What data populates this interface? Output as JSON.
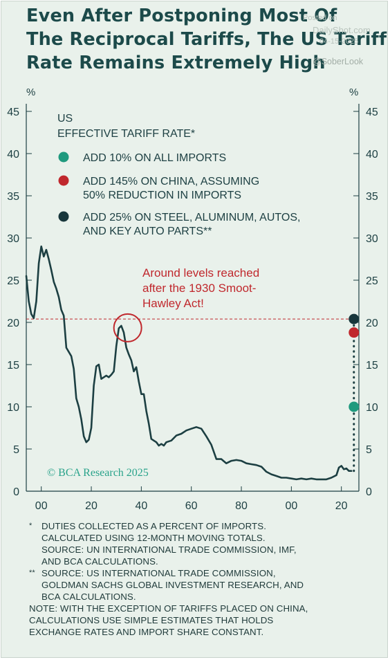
{
  "title_lines": [
    "Even After Postponing Most Of",
    "The Reciprocal Tariffs, The US Tariff",
    "Rate Remains Extremely High"
  ],
  "watermark": {
    "posted_on": "Posted on",
    "site": "DailyShot.com",
    "date": "04-15-2025",
    "handle": "@SoberLook"
  },
  "chart_data": {
    "type": "line",
    "y_unit_left": "%",
    "y_unit_right": "%",
    "ylim": [
      0,
      45
    ],
    "xlim": [
      1894,
      2027
    ],
    "y_ticks": [
      "0",
      "5",
      "10",
      "15",
      "20",
      "25",
      "30",
      "35",
      "40",
      "45"
    ],
    "x_ticks": [
      {
        "value": 1900,
        "label": "00"
      },
      {
        "value": 1920,
        "label": "20"
      },
      {
        "value": 1940,
        "label": "40"
      },
      {
        "value": 1960,
        "label": "60"
      },
      {
        "value": 1980,
        "label": "80"
      },
      {
        "value": 2000,
        "label": "00"
      },
      {
        "value": 2020,
        "label": "20"
      }
    ],
    "series": [
      {
        "name": "US EFFECTIVE TARIFF RATE",
        "color": "#1c3f42",
        "x": [
          1894,
          1895,
          1896,
          1897,
          1898,
          1899,
          1900,
          1901,
          1902,
          1903,
          1904,
          1905,
          1906,
          1907,
          1908,
          1909,
          1910,
          1911,
          1912,
          1913,
          1914,
          1915,
          1916,
          1917,
          1918,
          1919,
          1920,
          1921,
          1922,
          1923,
          1924,
          1925,
          1926,
          1927,
          1928,
          1929,
          1930,
          1931,
          1932,
          1933,
          1934,
          1935,
          1936,
          1937,
          1938,
          1939,
          1940,
          1941,
          1942,
          1943,
          1944,
          1945,
          1946,
          1947,
          1948,
          1949,
          1950,
          1952,
          1954,
          1956,
          1958,
          1960,
          1962,
          1964,
          1966,
          1968,
          1970,
          1972,
          1974,
          1976,
          1978,
          1980,
          1982,
          1984,
          1986,
          1988,
          1990,
          1992,
          1994,
          1996,
          1998,
          2000,
          2002,
          2004,
          2006,
          2008,
          2010,
          2012,
          2014,
          2016,
          2018,
          2019,
          2020,
          2021,
          2022,
          2023,
          2024
        ],
        "y": [
          25.5,
          22.5,
          21.0,
          20.5,
          22.5,
          27.0,
          29.0,
          27.8,
          28.6,
          27.5,
          26.2,
          24.8,
          24.0,
          23.0,
          21.5,
          20.8,
          17.0,
          16.5,
          16.0,
          14.5,
          11.0,
          10.0,
          8.5,
          6.5,
          5.8,
          6.1,
          7.5,
          12.5,
          14.8,
          15.0,
          13.3,
          13.5,
          13.7,
          13.5,
          13.8,
          14.2,
          17.2,
          19.3,
          19.6,
          18.8,
          17.0,
          16.2,
          15.5,
          14.2,
          14.7,
          13.0,
          11.5,
          11.5,
          9.5,
          8.0,
          6.2,
          6.0,
          5.8,
          5.4,
          5.6,
          5.4,
          5.8,
          6.0,
          6.6,
          6.8,
          7.2,
          7.4,
          7.6,
          7.4,
          6.5,
          5.5,
          3.8,
          3.8,
          3.3,
          3.6,
          3.7,
          3.6,
          3.3,
          3.2,
          3.1,
          2.9,
          2.3,
          2.0,
          1.8,
          1.6,
          1.6,
          1.5,
          1.4,
          1.5,
          1.4,
          1.5,
          1.4,
          1.4,
          1.4,
          1.6,
          1.9,
          2.8,
          3.0,
          2.6,
          2.7,
          2.4,
          2.4
        ]
      }
    ],
    "scenarios": [
      {
        "label_lines": [
          "ADD 10% ON ALL IMPORTS"
        ],
        "x": 2025,
        "y": 10.0,
        "color": "#1f9a7e"
      },
      {
        "label_lines": [
          "ADD 145% ON CHINA, ASSUMING",
          "50% REDUCTION IN IMPORTS"
        ],
        "x": 2025,
        "y": 18.8,
        "color": "#c0282d"
      },
      {
        "label_lines": [
          "ADD 25% ON STEEL, ALUMINUM, AUTOS,",
          "AND KEY AUTO PARTS**"
        ],
        "x": 2025,
        "y": 20.4,
        "color": "#17363b"
      }
    ],
    "legend_title_lines": [
      "US",
      "EFFECTIVE TARIFF RATE*"
    ],
    "reference_line": {
      "y": 20.4,
      "color": "#c0282d"
    },
    "annotation": {
      "lines": [
        "Around levels reached",
        "after the 1930 Smoot-",
        "Hawley Act!"
      ],
      "color": "#c0282d",
      "circle_x": 1934,
      "circle_y": 19.6
    },
    "source_badge": "© BCA Research 2025",
    "grid": false,
    "legend_position": "top-left"
  },
  "notes": [
    {
      "mark": "*",
      "text": "DUTIES COLLECTED AS A PERCENT OF IMPORTS.\nCALCULATED USING 12-MONTH MOVING TOTALS.\nSOURCE: UN INTERNATIONAL TRADE COMMISSION, IMF,\nAND BCA CALCULATIONS."
    },
    {
      "mark": "**",
      "text": "SOURCE: US INTERNATIONAL TRADE COMMISSION,\nGOLDMAN SACHS GLOBAL INVESTMENT RESEARCH, AND\nBCA CALCULATIONS."
    }
  ],
  "note_final": "NOTE: WITH THE EXCEPTION OF TARIFFS PLACED ON CHINA,\nCALCULATIONS USE SIMPLE ESTIMATES THAT HOLDS\nEXCHANGE RATES AND IMPORT SHARE CONSTANT."
}
